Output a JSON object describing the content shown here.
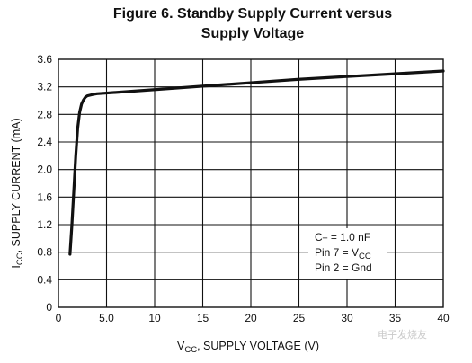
{
  "chart_data": {
    "type": "line",
    "title_line1": "Figure 6. Standby Supply Current versus",
    "title_line2": "Supply Voltage",
    "xlabel": {
      "main": "V",
      "sub": "CC",
      "rest": ", SUPPLY VOLTAGE (V)"
    },
    "ylabel": {
      "main": "I",
      "sub": "CC",
      "rest": ", SUPPLY CURRENT (mA)"
    },
    "xlim": [
      0,
      40
    ],
    "ylim": [
      0,
      3.6
    ],
    "xticks": [
      0,
      5,
      10,
      15,
      20,
      25,
      30,
      35,
      40
    ],
    "xtick_labels": [
      "0",
      "5.0",
      "10",
      "15",
      "20",
      "25",
      "30",
      "35",
      "40"
    ],
    "yticks": [
      0,
      0.4,
      0.8,
      1.2,
      1.6,
      2.0,
      2.4,
      2.8,
      3.2,
      3.6
    ],
    "ytick_labels": [
      "0",
      "0.4",
      "0.8",
      "1.2",
      "1.6",
      "2.0",
      "2.4",
      "2.8",
      "3.2",
      "3.6"
    ],
    "grid": true,
    "series": [
      {
        "x": [
          1.2,
          1.4,
          1.6,
          1.8,
          2.0,
          2.2,
          2.4,
          2.6,
          2.8,
          3.0,
          3.3,
          3.6,
          4.0,
          5,
          10,
          15,
          20,
          25,
          30,
          35,
          40
        ],
        "y": [
          0.77,
          1.2,
          1.7,
          2.2,
          2.6,
          2.83,
          2.95,
          3.01,
          3.05,
          3.07,
          3.08,
          3.09,
          3.1,
          3.11,
          3.16,
          3.21,
          3.26,
          3.31,
          3.35,
          3.39,
          3.43
        ],
        "color": "#111111"
      }
    ],
    "annotations": [
      {
        "main": "C",
        "sub": "T",
        "rest": " = 1.0 nF"
      },
      {
        "main": "Pin 7 = V",
        "sub": "CC",
        "rest": ""
      },
      {
        "main": "Pin 2 = Gnd",
        "sub": "",
        "rest": ""
      }
    ]
  },
  "watermark": "电子发烧友"
}
